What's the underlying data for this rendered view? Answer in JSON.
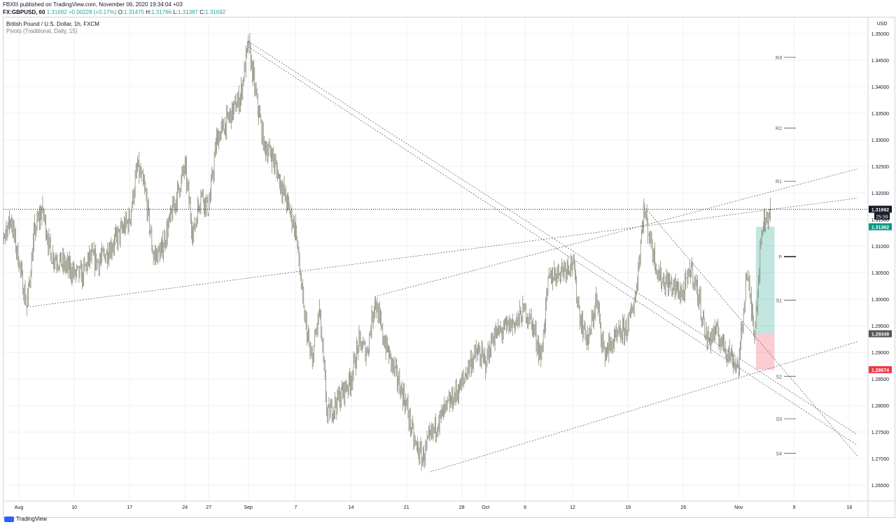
{
  "header": {
    "publisher_line": "FBXIII published on TradingView.com, November 06, 2020 19:34:04 +03",
    "symbol": "FX:GBPUSD, 60",
    "last": "1.31692",
    "change": "+0.00228 (+0.17%)",
    "o_label": "O:",
    "o": "1.31475",
    "h_label": "H:",
    "h": "1.31766",
    "l_label": "L:",
    "l": "1.31387",
    "c_label": "C:",
    "c": "1.31692"
  },
  "legend": {
    "title": "British Pound / U.S. Dollar, 1h, FXCM",
    "indicator": "Pivots (Traditional, Daily, 15)"
  },
  "footer": {
    "brand": "TradingView"
  },
  "colors": {
    "candle": "#8a8a7a",
    "grid": "#eef0f3",
    "trendline": "#555555",
    "up": "#089981",
    "down": "#f23645",
    "price_tag": "#131722"
  },
  "chart_data": {
    "type": "candlestick",
    "currency": "USD",
    "ylim": [
      1.262,
      1.353
    ],
    "y_ticks": [
      1.35,
      1.345,
      1.34,
      1.335,
      1.33,
      1.325,
      1.32,
      1.315,
      1.31,
      1.305,
      1.3,
      1.295,
      1.29,
      1.285,
      1.28,
      1.275,
      1.27,
      1.265
    ],
    "x_ticks": [
      "Aug",
      "10",
      "17",
      "24",
      "27",
      "Sep",
      "7",
      "14",
      "21",
      "28",
      "Oct",
      "6",
      "12",
      "19",
      "26",
      "Nov",
      "9",
      "16"
    ],
    "price_path": [
      {
        "d": "2020-07-31",
        "p": 1.299
      },
      {
        "d": "2020-08-01",
        "p": 1.312
      },
      {
        "d": "2020-08-02",
        "p": 1.315
      },
      {
        "d": "2020-08-03",
        "p": 1.307
      },
      {
        "d": "2020-08-04",
        "p": 1.2985
      },
      {
        "d": "2020-08-05",
        "p": 1.313
      },
      {
        "d": "2020-08-06",
        "p": 1.317
      },
      {
        "d": "2020-08-07",
        "p": 1.3085
      },
      {
        "d": "2020-08-10",
        "p": 1.305
      },
      {
        "d": "2020-08-11",
        "p": 1.3045
      },
      {
        "d": "2020-08-12",
        "p": 1.308
      },
      {
        "d": "2020-08-13",
        "p": 1.307
      },
      {
        "d": "2020-08-14",
        "p": 1.3085
      },
      {
        "d": "2020-08-17",
        "p": 1.315
      },
      {
        "d": "2020-08-18",
        "p": 1.325
      },
      {
        "d": "2020-08-19",
        "p": 1.32
      },
      {
        "d": "2020-08-20",
        "p": 1.308
      },
      {
        "d": "2020-08-21",
        "p": 1.309
      },
      {
        "d": "2020-08-24",
        "p": 1.325
      },
      {
        "d": "2020-08-25",
        "p": 1.312
      },
      {
        "d": "2020-08-26",
        "p": 1.32
      },
      {
        "d": "2020-08-27",
        "p": 1.317
      },
      {
        "d": "2020-08-28",
        "p": 1.33
      },
      {
        "d": "2020-08-31",
        "p": 1.338
      },
      {
        "d": "2020-09-01",
        "p": 1.348
      },
      {
        "d": "2020-09-02",
        "p": 1.338
      },
      {
        "d": "2020-09-03",
        "p": 1.329
      },
      {
        "d": "2020-09-04",
        "p": 1.327
      },
      {
        "d": "2020-09-07",
        "p": 1.313
      },
      {
        "d": "2020-09-08",
        "p": 1.298
      },
      {
        "d": "2020-09-09",
        "p": 1.288
      },
      {
        "d": "2020-09-10",
        "p": 1.298
      },
      {
        "d": "2020-09-11",
        "p": 1.278
      },
      {
        "d": "2020-09-14",
        "p": 1.285
      },
      {
        "d": "2020-09-15",
        "p": 1.292
      },
      {
        "d": "2020-09-16",
        "p": 1.29
      },
      {
        "d": "2020-09-17",
        "p": 1.3
      },
      {
        "d": "2020-09-18",
        "p": 1.293
      },
      {
        "d": "2020-09-21",
        "p": 1.28
      },
      {
        "d": "2020-09-22",
        "p": 1.273
      },
      {
        "d": "2020-09-23",
        "p": 1.27
      },
      {
        "d": "2020-09-24",
        "p": 1.274
      },
      {
        "d": "2020-09-25",
        "p": 1.277
      },
      {
        "d": "2020-09-28",
        "p": 1.284
      },
      {
        "d": "2020-09-29",
        "p": 1.288
      },
      {
        "d": "2020-09-30",
        "p": 1.29
      },
      {
        "d": "2020-10-01",
        "p": 1.288
      },
      {
        "d": "2020-10-02",
        "p": 1.293
      },
      {
        "d": "2020-10-05",
        "p": 1.296
      },
      {
        "d": "2020-10-06",
        "p": 1.298
      },
      {
        "d": "2020-10-07",
        "p": 1.295
      },
      {
        "d": "2020-10-08",
        "p": 1.289
      },
      {
        "d": "2020-10-09",
        "p": 1.304
      },
      {
        "d": "2020-10-12",
        "p": 1.307
      },
      {
        "d": "2020-10-13",
        "p": 1.296
      },
      {
        "d": "2020-10-14",
        "p": 1.292
      },
      {
        "d": "2020-10-15",
        "p": 1.3
      },
      {
        "d": "2020-10-16",
        "p": 1.29
      },
      {
        "d": "2020-10-19",
        "p": 1.295
      },
      {
        "d": "2020-10-20",
        "p": 1.301
      },
      {
        "d": "2020-10-21",
        "p": 1.317
      },
      {
        "d": "2020-10-22",
        "p": 1.31
      },
      {
        "d": "2020-10-23",
        "p": 1.304
      },
      {
        "d": "2020-10-26",
        "p": 1.301
      },
      {
        "d": "2020-10-27",
        "p": 1.306
      },
      {
        "d": "2020-10-28",
        "p": 1.3
      },
      {
        "d": "2020-10-29",
        "p": 1.292
      },
      {
        "d": "2020-10-30",
        "p": 1.294
      },
      {
        "d": "2020-11-02",
        "p": 1.287
      },
      {
        "d": "2020-11-03",
        "p": 1.305
      },
      {
        "d": "2020-11-04",
        "p": 1.294
      },
      {
        "d": "2020-11-05",
        "p": 1.314
      },
      {
        "d": "2020-11-06",
        "p": 1.3169
      }
    ],
    "pivots": [
      {
        "label": "R3",
        "value": 1.3455
      },
      {
        "label": "R2",
        "value": 1.3322
      },
      {
        "label": "R1",
        "value": 1.3222
      },
      {
        "label": "P",
        "value": 1.308
      },
      {
        "label": "S1",
        "value": 1.2998
      },
      {
        "label": "S2",
        "value": 1.2855
      },
      {
        "label": "S3",
        "value": 1.2775
      },
      {
        "label": "S4",
        "value": 1.271
      }
    ],
    "trendlines": [
      {
        "from": {
          "d": "2020-08-04",
          "p": 1.2985
        },
        "to": {
          "d": "2020-11-17",
          "p": 1.319
        }
      },
      {
        "from": {
          "d": "2020-09-17",
          "p": 1.3005
        },
        "to": {
          "d": "2020-11-17",
          "p": 1.3245
        }
      },
      {
        "from": {
          "d": "2020-09-24",
          "p": 1.2675
        },
        "to": {
          "d": "2020-11-17",
          "p": 1.292
        }
      },
      {
        "from": {
          "d": "2020-09-01",
          "p": 1.3485
        },
        "to": {
          "d": "2020-11-17",
          "p": 1.2745
        }
      },
      {
        "from": {
          "d": "2020-09-01",
          "p": 1.3475
        },
        "to": {
          "d": "2020-11-17",
          "p": 1.2725
        }
      },
      {
        "from": {
          "d": "2020-10-21",
          "p": 1.3175
        },
        "to": {
          "d": "2020-11-17",
          "p": 1.2705
        }
      }
    ],
    "current_price_line": 1.31692,
    "position": {
      "entry": 1.29349,
      "target": 1.31362,
      "stop": 1.28674,
      "from": "2020-11-04",
      "to": "2020-11-06"
    },
    "price_labels": [
      {
        "value": 1.31692,
        "text": "1.31692",
        "color": "#131722"
      },
      {
        "value": 1.31362,
        "text": "1.31362",
        "color": "#089981"
      },
      {
        "value": 1.29349,
        "text": "1.29349",
        "color": "#555555"
      },
      {
        "value": 1.28674,
        "text": "1.28674",
        "color": "#f23645"
      }
    ],
    "countdown": "25:59"
  }
}
